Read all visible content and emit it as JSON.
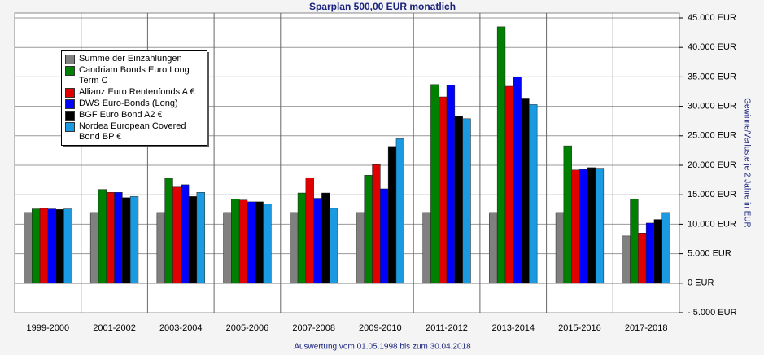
{
  "chart_data": {
    "type": "bar",
    "title": "Sparplan 500,00 EUR monatlich",
    "subtitle": "Auswertung vom 01.05.1998 bis zum 30.04.2018",
    "y_axis_label": "Gewinne/Verluste je 2 Jahre in EUR",
    "categories": [
      "1999-2000",
      "2001-2002",
      "2003-2004",
      "2005-2006",
      "2007-2008",
      "2009-2010",
      "2011-2012",
      "2013-2014",
      "2015-2016",
      "2017-2018"
    ],
    "series": [
      {
        "name": "Summe der Einzahlungen",
        "color": "#808080",
        "values": [
          12000,
          12000,
          12000,
          12000,
          12000,
          12000,
          12000,
          12000,
          12000,
          8000
        ]
      },
      {
        "name": "Candriam Bonds Euro Long Term C",
        "color": "#008000",
        "values": [
          12600,
          15900,
          17800,
          14300,
          15300,
          18300,
          33700,
          43500,
          23300,
          14300
        ]
      },
      {
        "name": "Allianz Euro Rentenfonds A €",
        "color": "#e00000",
        "values": [
          12700,
          15400,
          16300,
          14100,
          17900,
          20100,
          31600,
          33400,
          19200,
          8500
        ]
      },
      {
        "name": "DWS Euro-Bonds (Long)",
        "color": "#0000ff",
        "values": [
          12600,
          15400,
          16700,
          13800,
          14400,
          16000,
          33600,
          35000,
          19300,
          10200
        ]
      },
      {
        "name": "BGF Euro Bond A2 €",
        "color": "#000000",
        "values": [
          12500,
          14500,
          14700,
          13800,
          15300,
          23200,
          28300,
          31400,
          19600,
          10800
        ]
      },
      {
        "name": "Nordea European Covered Bond BP €",
        "color": "#1a9ae0",
        "values": [
          12600,
          14700,
          15400,
          13400,
          12700,
          24500,
          27900,
          30300,
          19500,
          12000
        ]
      }
    ],
    "ylim": [
      -5000,
      45000
    ],
    "yticks": [
      {
        "value": -5000,
        "label": "- 5.000 EUR"
      },
      {
        "value": 0,
        "label": "0 EUR"
      },
      {
        "value": 5000,
        "label": "5.000 EUR"
      },
      {
        "value": 10000,
        "label": "10.000 EUR"
      },
      {
        "value": 15000,
        "label": "15.000 EUR"
      },
      {
        "value": 20000,
        "label": "20.000 EUR"
      },
      {
        "value": 25000,
        "label": "25.000 EUR"
      },
      {
        "value": 30000,
        "label": "30.000 EUR"
      },
      {
        "value": 35000,
        "label": "35.000 EUR"
      },
      {
        "value": 40000,
        "label": "40.000 EUR"
      },
      {
        "value": 45000,
        "label": "45.000 EUR"
      }
    ],
    "grid": true,
    "legend_position": "upper-left"
  }
}
